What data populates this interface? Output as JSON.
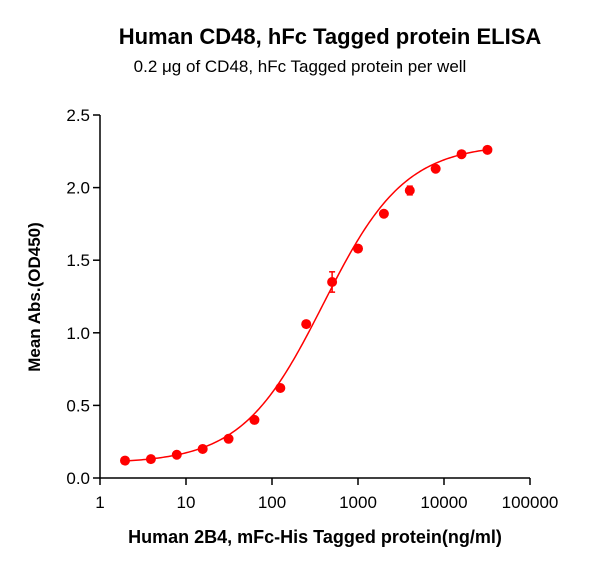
{
  "chart_data": {
    "type": "scatter",
    "title": "Human CD48, hFc Tagged protein ELISA",
    "subtitle": "0.2 μg of CD48, hFc Tagged protein per well",
    "xlabel": "Human 2B4, mFc-His Tagged protein(ng/ml)",
    "ylabel": "Mean Abs.(OD450)",
    "xscale": "log",
    "xlim": [
      1,
      100000
    ],
    "ylim": [
      0,
      2.5
    ],
    "x_ticks": [
      1,
      10,
      100,
      1000,
      10000,
      100000
    ],
    "x_tick_labels": [
      "1",
      "10",
      "100",
      "1000",
      "10000",
      "100000"
    ],
    "y_ticks": [
      0,
      0.5,
      1.0,
      1.5,
      2.0,
      2.5
    ],
    "y_tick_labels": [
      "0.0",
      "0.5",
      "1.0",
      "1.5",
      "2.0",
      "2.5"
    ],
    "grid": false,
    "legend": null,
    "series": [
      {
        "name": "Human 2B4, mFc-His Tagged protein",
        "color": "#ff0000",
        "marker": "circle",
        "x": [
          1.953,
          3.906,
          7.813,
          15.63,
          31.25,
          62.5,
          125,
          250,
          500,
          1000,
          2000,
          4000,
          8000,
          16000,
          32000
        ],
        "y": [
          0.12,
          0.13,
          0.16,
          0.2,
          0.27,
          0.4,
          0.62,
          1.06,
          1.35,
          1.58,
          1.82,
          1.98,
          2.13,
          2.23,
          2.26
        ],
        "error": [
          0.01,
          0.01,
          0.01,
          0.01,
          0.01,
          0.01,
          0.02,
          0.02,
          0.07,
          0.02,
          0.02,
          0.03,
          0.02,
          0.02,
          0.02
        ]
      }
    ],
    "fit": {
      "type": "4PL",
      "bottom": 0.1,
      "top": 2.3,
      "ec50": 396,
      "hill": 0.915,
      "color": "#ff0000"
    }
  }
}
